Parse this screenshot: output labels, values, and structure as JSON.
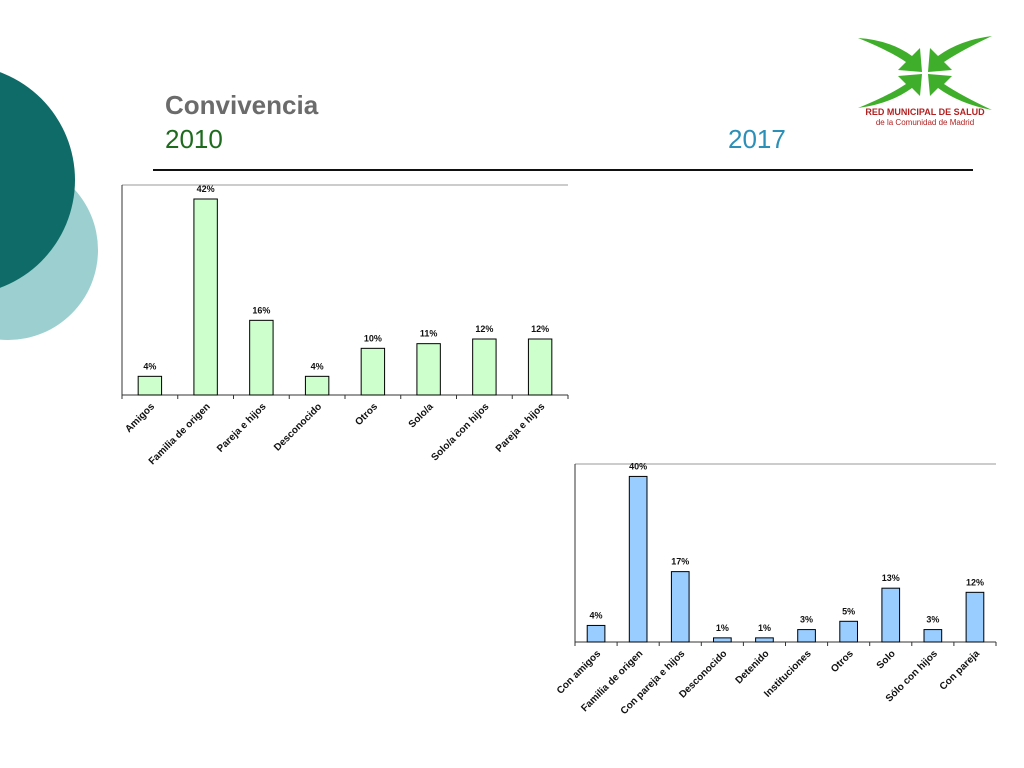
{
  "slide": {
    "title": "Convivencia",
    "year_left": "2010",
    "year_right": "2017"
  },
  "logo": {
    "line1": "RED MUNICIPAL DE SALUD",
    "line2": "de la Comunidad de Madrid",
    "color": "#3fae2a",
    "text_color": "#b22222"
  },
  "chart_data": [
    {
      "type": "bar",
      "categories": [
        "Amigos",
        "Familia de origen",
        "Pareja e hijos",
        "Desconocido",
        "Otros",
        "Solo/a",
        "Solo/a con hijos",
        "Pareja e hijos"
      ],
      "values": [
        4,
        42,
        16,
        4,
        10,
        11,
        12,
        12
      ],
      "data_labels": [
        "4%",
        "42%",
        "16%",
        "4%",
        "10%",
        "11%",
        "12%",
        "12%"
      ],
      "ylim": [
        0,
        45
      ],
      "bar_color": "#ccffcc",
      "title": "",
      "xlabel": "",
      "ylabel": ""
    },
    {
      "type": "bar",
      "categories": [
        "Con amigos",
        "Familia de origen",
        "Con pareja e hijos",
        "Desconocido",
        "Detenido",
        "Instituciones",
        "Otros",
        "Solo",
        "Sólo con hijos",
        "Con pareja"
      ],
      "values": [
        4,
        40,
        17,
        1,
        1,
        3,
        5,
        13,
        3,
        12
      ],
      "data_labels": [
        "4%",
        "40%",
        "17%",
        "1%",
        "1%",
        "3%",
        "5%",
        "13%",
        "3%",
        "12%"
      ],
      "ylim": [
        0,
        43
      ],
      "bar_color": "#99ccff",
      "title": "",
      "xlabel": "",
      "ylabel": ""
    }
  ]
}
